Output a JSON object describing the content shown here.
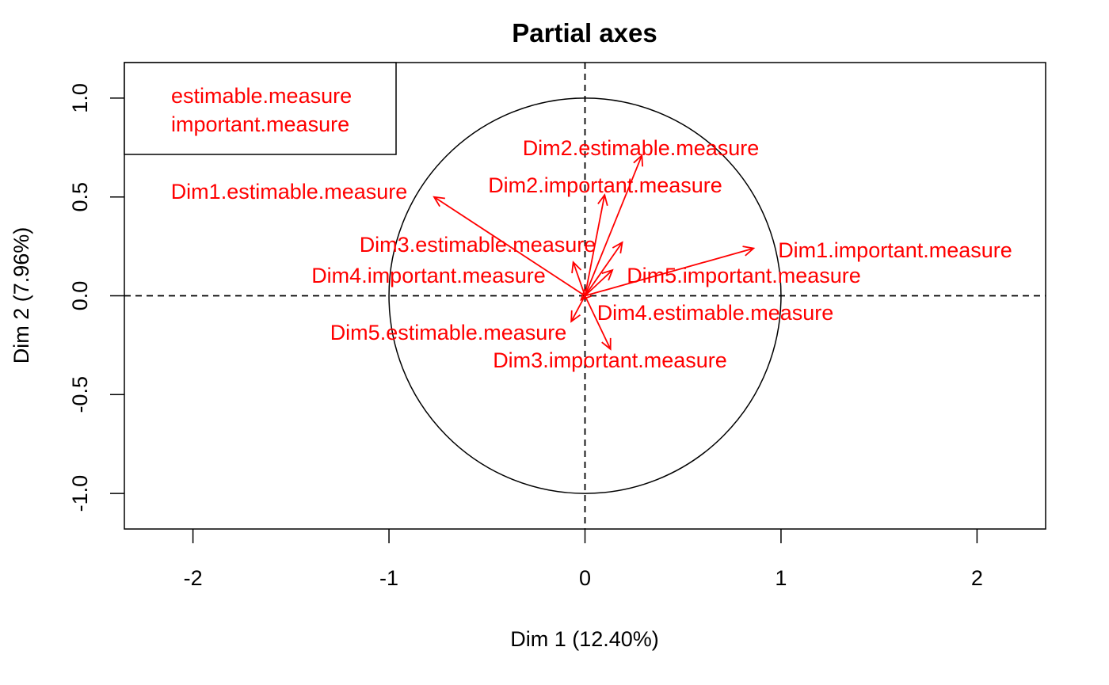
{
  "chart_data": {
    "type": "scatter",
    "title": "Partial axes",
    "xlabel": "Dim 1 (12.40%)",
    "ylabel": "Dim 2 (7.96%)",
    "xlim": [
      -2.35,
      2.35
    ],
    "ylim": [
      -1.18,
      1.18
    ],
    "x_ticks": [
      -2,
      -1,
      0,
      1,
      2
    ],
    "x_tick_labels": [
      "-2",
      "-1",
      "0",
      "1",
      "2"
    ],
    "y_ticks": [
      -1.0,
      -0.5,
      0.0,
      0.5,
      1.0
    ],
    "y_tick_labels": [
      "-1.0",
      "-0.5",
      "0.0",
      "0.5",
      "1.0"
    ],
    "unit_circle": true,
    "reference_lines": {
      "x": 0,
      "y": 0,
      "style": "dashed"
    },
    "legend": {
      "position": "top-left",
      "entries": [
        "estimable.measure",
        "important.measure"
      ]
    },
    "arrows": [
      {
        "label": "Dim1.estimable.measure",
        "x": -0.77,
        "y": 0.5
      },
      {
        "label": "Dim1.important.measure",
        "x": 0.86,
        "y": 0.24
      },
      {
        "label": "Dim2.estimable.measure",
        "x": 0.29,
        "y": 0.71
      },
      {
        "label": "Dim2.important.measure",
        "x": 0.1,
        "y": 0.51
      },
      {
        "label": "Dim3.estimable.measure",
        "x": 0.19,
        "y": 0.27
      },
      {
        "label": "Dim3.important.measure",
        "x": 0.13,
        "y": -0.27
      },
      {
        "label": "Dim4.important.measure",
        "x": -0.06,
        "y": 0.17
      },
      {
        "label": "Dim4.estimable.measure",
        "x": -0.02,
        "y": -0.02
      },
      {
        "label": "Dim5.important.measure",
        "x": 0.14,
        "y": 0.13
      },
      {
        "label": "Dim5.estimable.measure",
        "x": -0.07,
        "y": -0.13
      }
    ],
    "colors": {
      "arrows": "#ff0000",
      "axes": "#000000"
    }
  }
}
